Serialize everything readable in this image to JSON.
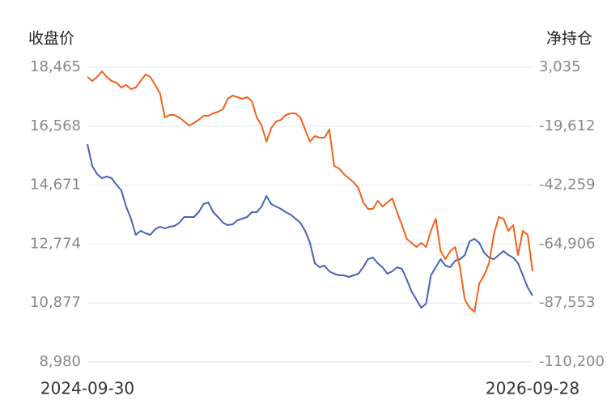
{
  "chart_data": {
    "type": "line",
    "y_label": "收盘价",
    "y2_label": "净持仓",
    "categories": [
      "2024-09-30",
      null,
      null,
      null,
      null,
      null,
      null,
      null,
      null,
      null,
      null,
      null,
      null,
      null,
      null,
      null,
      null,
      null,
      null,
      null,
      null,
      null,
      null,
      null,
      null,
      null,
      null,
      null,
      null,
      null,
      null,
      null,
      null,
      null,
      null,
      null,
      null,
      null,
      null,
      null,
      null,
      null,
      null,
      null,
      null,
      null,
      null,
      null,
      null,
      null,
      null,
      null,
      null,
      null,
      null,
      null,
      null,
      null,
      null,
      null,
      null,
      null,
      null,
      null,
      null,
      null,
      null,
      null,
      null,
      null,
      null,
      null,
      null,
      null,
      null,
      null,
      null,
      null,
      null,
      null,
      null,
      null,
      null,
      null,
      null,
      null,
      null,
      null,
      null,
      null,
      null,
      null,
      "2026-09-28"
    ],
    "series": [
      {
        "name": "收盘价",
        "color": "#4862b8",
        "axis": "y",
        "values": [
          15990,
          15286,
          15025,
          14895,
          14947,
          14895,
          14687,
          14504,
          13983,
          13592,
          13071,
          13201,
          13123,
          13071,
          13253,
          13332,
          13279,
          13332,
          13358,
          13462,
          13644,
          13644,
          13644,
          13801,
          14061,
          14113,
          13801,
          13644,
          13462,
          13384,
          13410,
          13540,
          13592,
          13644,
          13801,
          13801,
          13983,
          14322,
          14061,
          13983,
          13905,
          13801,
          13722,
          13592,
          13462,
          13201,
          12810,
          12159,
          12029,
          12081,
          11898,
          11820,
          11768,
          11768,
          11716,
          11768,
          11820,
          12029,
          12289,
          12341,
          12159,
          12029,
          11820,
          11898,
          12029,
          11977,
          11638,
          11247,
          10986,
          10726,
          10856,
          11768,
          12029,
          12289,
          12081,
          12029,
          12237,
          12289,
          12420,
          12863,
          12941,
          12810,
          12498,
          12341,
          12289,
          12420,
          12550,
          12420,
          12341,
          12159,
          11768,
          11377,
          11117
        ]
      },
      {
        "name": "净持仓",
        "color": "#f2611a",
        "axis": "y2",
        "values": [
          -698,
          -2254,
          -698,
          1480,
          -698,
          -2254,
          -2876,
          -4742,
          -3809,
          -5364,
          -4742,
          -2254,
          235,
          -698,
          -3809,
          -6920,
          -16253,
          -15319,
          -15319,
          -16253,
          -17808,
          -19363,
          -18430,
          -17186,
          -15630,
          -15630,
          -14697,
          -14075,
          -13142,
          -9098,
          -7853,
          -8475,
          -9098,
          -8475,
          -10031,
          -16253,
          -19363,
          -25585,
          -20297,
          -17808,
          -17186,
          -15319,
          -14697,
          -14697,
          -16253,
          -20919,
          -25585,
          -23408,
          -24030,
          -24030,
          -20919,
          -34918,
          -35851,
          -38029,
          -39584,
          -41140,
          -43317,
          -48917,
          -51406,
          -51406,
          -48295,
          -50472,
          -48917,
          -47362,
          -52650,
          -57628,
          -62916,
          -64472,
          -66027,
          -64472,
          -66027,
          -59805,
          -55139,
          -67582,
          -70693,
          -67582,
          -66027,
          -73804,
          -86248,
          -89359,
          -90914,
          -80026,
          -76915,
          -72249,
          -61361,
          -54517,
          -55139,
          -59805,
          -57628,
          -69137,
          -59805,
          -61361,
          -75358
        ]
      }
    ],
    "ylim": [
      8980,
      18465
    ],
    "yticks": [
      {
        "value": 8980,
        "label": "8,980"
      },
      {
        "value": 10877,
        "label": "10,877"
      },
      {
        "value": 12774,
        "label": "12,774"
      },
      {
        "value": 14671,
        "label": "14,671"
      },
      {
        "value": 16568,
        "label": "16,568"
      },
      {
        "value": 18465,
        "label": "18,465"
      }
    ],
    "y2lim": [
      -110200,
      3035
    ],
    "y2ticks": [
      {
        "value": -110200,
        "label": "-110,200"
      },
      {
        "value": -87553,
        "label": "-87,553"
      },
      {
        "value": -64906,
        "label": "-64,906"
      },
      {
        "value": -42259,
        "label": "-42,259"
      },
      {
        "value": -19612,
        "label": "-19,612"
      },
      {
        "value": 3035,
        "label": "3,035"
      }
    ],
    "grid": true
  }
}
